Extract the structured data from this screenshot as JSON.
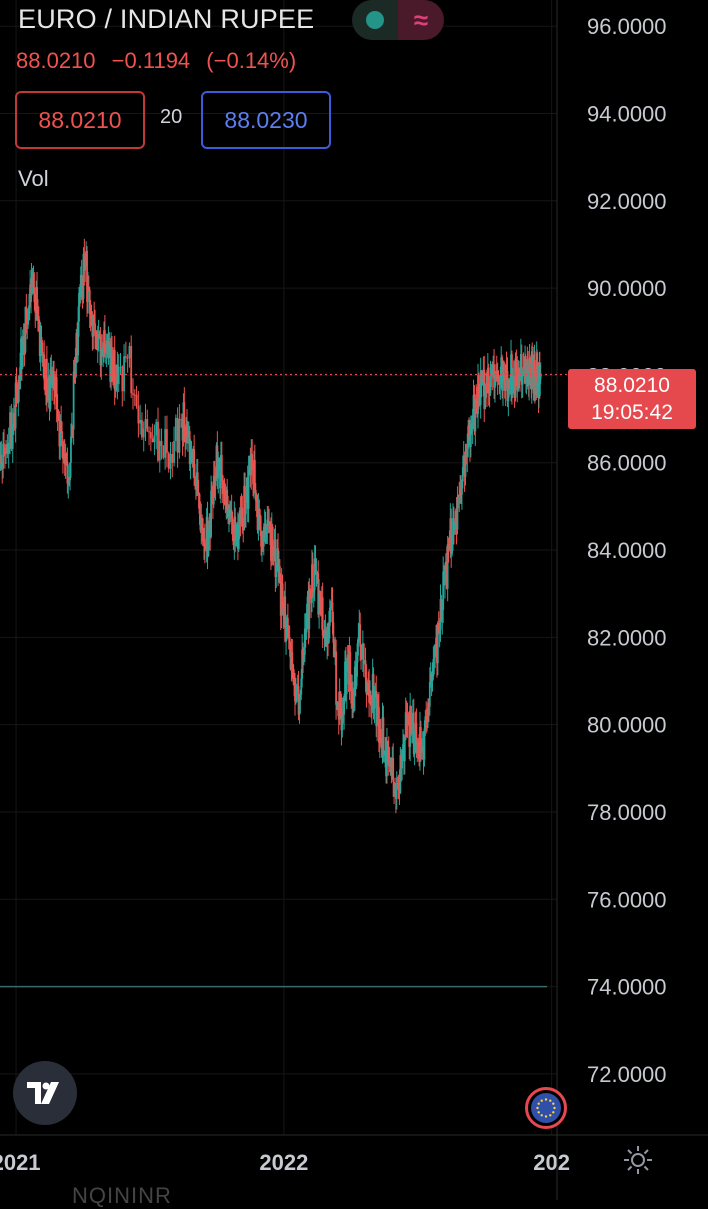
{
  "header": {
    "symbol_title": "EURO / INDIAN RUPEE",
    "last_price": "88.0210",
    "change": "−0.1194",
    "change_pct": "(−0.14%)",
    "sell_price": "88.0210",
    "spread": "20",
    "buy_price": "88.0230",
    "vol_label": "Vol",
    "market_status_icon": "market-open-dot",
    "data_icon": "approx-icon"
  },
  "price_tag": {
    "price": "88.0210",
    "countdown": "19:05:42"
  },
  "bottom": {
    "ticker_partial": "NQININR",
    "settings_icon": "gear-icon",
    "logo_icon": "tradingview-logo"
  },
  "colors": {
    "up": "#26a69a",
    "down": "#ef5350",
    "tag": "#e5484d",
    "grid": "#1a1a1a"
  },
  "chart_data": {
    "type": "line",
    "title": "EURO / INDIAN RUPEE",
    "ylim": [
      70.6,
      96.6
    ],
    "y_ticks": [
      "96.0000",
      "94.0000",
      "92.0000",
      "90.0000",
      "88.0000",
      "86.0000",
      "84.0000",
      "82.0000",
      "80.0000",
      "78.0000",
      "76.0000",
      "74.0000",
      "72.0000"
    ],
    "x_ticks": [
      "2021",
      "2022",
      "202"
    ],
    "x_tick_positions_year": [
      2021.0,
      2022.0,
      2023.0
    ],
    "xlim": [
      2020.94,
      2023.02
    ],
    "last_value": 88.021,
    "baseline_level": 74.0,
    "series": [
      {
        "x": [
          2020.94,
          2020.96,
          2020.99,
          2021.01,
          2021.03,
          2021.05,
          2021.06,
          2021.08,
          2021.1,
          2021.12,
          2021.14,
          2021.16,
          2021.18,
          2021.2,
          2021.22,
          2021.24,
          2021.26,
          2021.28,
          2021.3,
          2021.32,
          2021.34,
          2021.36,
          2021.38,
          2021.42,
          2021.46,
          2021.5,
          2021.54,
          2021.58,
          2021.62,
          2021.64,
          2021.66,
          2021.68,
          2021.7,
          2021.72,
          2021.74,
          2021.76,
          2021.78,
          2021.8,
          2021.82,
          2021.84,
          2021.86,
          2021.88,
          2021.9,
          2021.92,
          2021.94,
          2021.96,
          2021.98,
          2022.0,
          2022.02,
          2022.04,
          2022.06,
          2022.08,
          2022.1,
          2022.12,
          2022.14,
          2022.16,
          2022.18,
          2022.2,
          2022.22,
          2022.24,
          2022.26,
          2022.28,
          2022.3,
          2022.32,
          2022.34,
          2022.36,
          2022.38,
          2022.4,
          2022.42,
          2022.44,
          2022.46,
          2022.48,
          2022.5,
          2022.52,
          2022.54,
          2022.56,
          2022.58,
          2022.6,
          2022.62,
          2022.64,
          2022.66,
          2022.68,
          2022.7,
          2022.72,
          2022.74,
          2022.76,
          2022.78,
          2022.8,
          2022.82,
          2022.84,
          2022.86,
          2022.88,
          2022.9,
          2022.91,
          2022.92,
          2022.93,
          2022.94,
          2022.95
        ],
        "values": [
          86.2,
          86.9,
          87.9,
          88.9,
          89.6,
          90.2,
          89.4,
          88.3,
          87.6,
          88.1,
          87.0,
          86.2,
          85.6,
          88.0,
          89.8,
          90.6,
          89.3,
          89.0,
          88.6,
          88.8,
          88.2,
          87.8,
          88.4,
          86.9,
          86.7,
          86.5,
          86.2,
          87.0,
          86.6,
          86.0,
          85.3,
          84.1,
          84.3,
          85.7,
          86.1,
          85.2,
          84.8,
          84.2,
          84.6,
          85.1,
          86.2,
          85.1,
          84.2,
          84.7,
          84.0,
          83.5,
          82.5,
          82.0,
          80.9,
          80.6,
          82.2,
          83.0,
          83.5,
          82.5,
          81.8,
          82.8,
          80.5,
          80.3,
          81.6,
          80.4,
          82.0,
          81.4,
          80.5,
          80.7,
          79.9,
          79.4,
          79.2,
          78.3,
          79.0,
          80.0,
          79.9,
          79.6,
          79.5,
          80.5,
          81.5,
          82.1,
          83.2,
          84.1,
          84.6,
          85.4,
          86.2,
          86.9,
          87.4,
          87.8,
          87.6,
          88.0,
          87.9,
          88.02,
          87.9,
          88.0,
          88.02,
          88.1,
          88.0,
          88.02,
          88.05,
          88.0,
          88.02,
          88.021
        ]
      }
    ]
  }
}
